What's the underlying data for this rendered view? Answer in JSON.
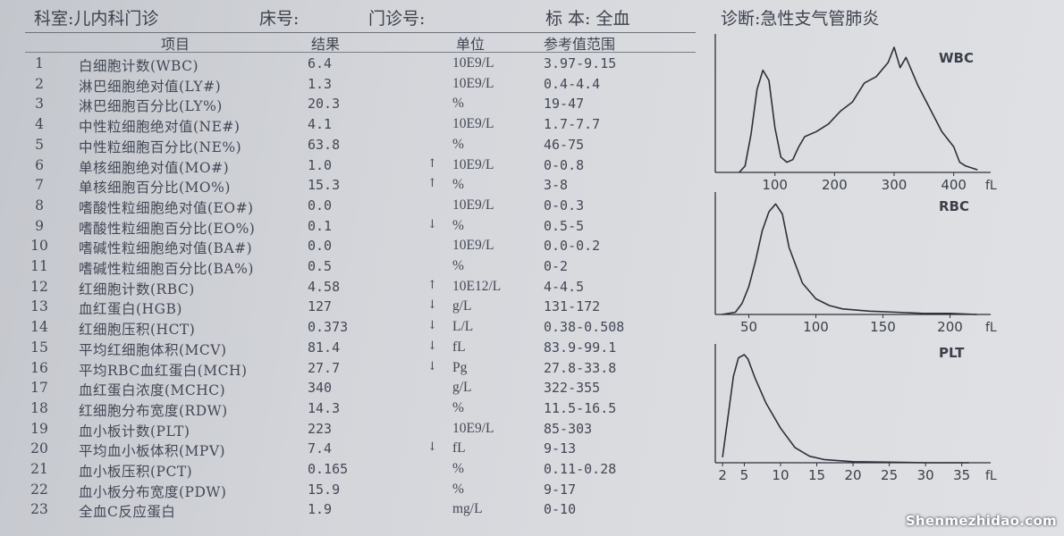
{
  "header": {
    "department": "科室:儿内科门诊",
    "bed_no": "床号:",
    "clinic_no": "门诊号:",
    "specimen": "标 本: 全血",
    "diagnosis": "诊断:急性支气管肺炎"
  },
  "columns": {
    "item": "项目",
    "result": "结果",
    "unit": "单位",
    "reference": "参考值范围"
  },
  "rows": [
    {
      "no": "1",
      "name": "白细胞计数(WBC)",
      "result": "6.4",
      "flag": "",
      "unit": "10E9/L",
      "ref": "3.97-9.15"
    },
    {
      "no": "2",
      "name": "淋巴细胞绝对值(LY#)",
      "result": "1.3",
      "flag": "",
      "unit": "10E9/L",
      "ref": "0.4-4.4"
    },
    {
      "no": "3",
      "name": "淋巴细胞百分比(LY%)",
      "result": "20.3",
      "flag": "",
      "unit": "%",
      "ref": "19-47"
    },
    {
      "no": "4",
      "name": "中性粒细胞绝对值(NE#)",
      "result": "4.1",
      "flag": "",
      "unit": "10E9/L",
      "ref": "1.7-7.7"
    },
    {
      "no": "5",
      "name": "中性粒细胞百分比(NE%)",
      "result": "63.8",
      "flag": "",
      "unit": "%",
      "ref": "46-75"
    },
    {
      "no": "6",
      "name": "单核细胞绝对值(MO#)",
      "result": "1.0",
      "flag": "↑",
      "unit": "10E9/L",
      "ref": "0-0.8"
    },
    {
      "no": "7",
      "name": "单核细胞百分比(MO%)",
      "result": "15.3",
      "flag": "↑",
      "unit": "%",
      "ref": "3-8"
    },
    {
      "no": "8",
      "name": "嗜酸性粒细胞绝对值(EO#)",
      "result": "0.0",
      "flag": "",
      "unit": "10E9/L",
      "ref": "0-0.3"
    },
    {
      "no": "9",
      "name": "嗜酸性粒细胞百分比(EO%)",
      "result": "0.1",
      "flag": "↓",
      "unit": "%",
      "ref": "0.5-5"
    },
    {
      "no": "10",
      "name": "嗜碱性粒细胞绝对值(BA#)",
      "result": "0.0",
      "flag": "",
      "unit": "10E9/L",
      "ref": "0.0-0.2"
    },
    {
      "no": "11",
      "name": "嗜碱性粒细胞百分比(BA%)",
      "result": "0.5",
      "flag": "",
      "unit": "%",
      "ref": "0-2"
    },
    {
      "no": "12",
      "name": "红细胞计数(RBC)",
      "result": "4.58",
      "flag": "↑",
      "unit": "10E12/L",
      "ref": "4-4.5"
    },
    {
      "no": "13",
      "name": "血红蛋白(HGB)",
      "result": "127",
      "flag": "↓",
      "unit": "g/L",
      "ref": "131-172"
    },
    {
      "no": "14",
      "name": "红细胞压积(HCT)",
      "result": "0.373",
      "flag": "↓",
      "unit": "L/L",
      "ref": "0.38-0.508"
    },
    {
      "no": "15",
      "name": "平均红细胞体积(MCV)",
      "result": "81.4",
      "flag": "↓",
      "unit": "fL",
      "ref": "83.9-99.1"
    },
    {
      "no": "16",
      "name": "平均RBC血红蛋白(MCH)",
      "result": "27.7",
      "flag": "↓",
      "unit": "Pg",
      "ref": "27.8-33.8"
    },
    {
      "no": "17",
      "name": "血红蛋白浓度(MCHC)",
      "result": "340",
      "flag": "",
      "unit": "g/L",
      "ref": "322-355"
    },
    {
      "no": "18",
      "name": "红细胞分布宽度(RDW)",
      "result": "14.3",
      "flag": "",
      "unit": "%",
      "ref": "11.5-16.5"
    },
    {
      "no": "19",
      "name": "血小板计数(PLT)",
      "result": "223",
      "flag": "",
      "unit": "10E9/L",
      "ref": "85-303"
    },
    {
      "no": "20",
      "name": "平均血小板体积(MPV)",
      "result": "7.4",
      "flag": "↓",
      "unit": "fL",
      "ref": "9-13"
    },
    {
      "no": "21",
      "name": "血小板压积(PCT)",
      "result": "0.165",
      "flag": "",
      "unit": "%",
      "ref": "0.11-0.28"
    },
    {
      "no": "22",
      "name": "血小板分布宽度(PDW)",
      "result": "15.9",
      "flag": "",
      "unit": "%",
      "ref": "9-17"
    },
    {
      "no": "23",
      "name": "全血C反应蛋白",
      "result": "1.9",
      "flag": "",
      "unit": "mg/L",
      "ref": "0-10"
    }
  ],
  "chart_data": [
    {
      "type": "line",
      "title": "WBC",
      "xlabel": "fL",
      "ticks": [
        "100",
        "200",
        "300",
        "400"
      ],
      "xlim": [
        0,
        450
      ],
      "x": [
        40,
        50,
        60,
        70,
        80,
        90,
        100,
        110,
        120,
        130,
        140,
        150,
        170,
        190,
        210,
        230,
        250,
        270,
        290,
        300,
        310,
        320,
        340,
        360,
        380,
        400,
        410,
        420,
        440
      ],
      "y": [
        0,
        0.05,
        0.3,
        0.65,
        0.8,
        0.72,
        0.35,
        0.12,
        0.08,
        0.1,
        0.2,
        0.28,
        0.32,
        0.38,
        0.48,
        0.55,
        0.7,
        0.75,
        0.86,
        0.98,
        0.82,
        0.9,
        0.68,
        0.5,
        0.32,
        0.2,
        0.08,
        0.05,
        0.02
      ]
    },
    {
      "type": "line",
      "title": "RBC",
      "xlabel": "fL",
      "ticks": [
        "50",
        "100",
        "150",
        "200"
      ],
      "xlim": [
        25,
        225
      ],
      "x": [
        30,
        40,
        45,
        50,
        55,
        60,
        65,
        70,
        75,
        80,
        90,
        100,
        110,
        120,
        140,
        160,
        180,
        200,
        220
      ],
      "y": [
        0,
        0.02,
        0.1,
        0.25,
        0.48,
        0.75,
        0.92,
        0.99,
        0.9,
        0.6,
        0.28,
        0.14,
        0.08,
        0.05,
        0.03,
        0.02,
        0.01,
        0.01,
        0
      ]
    },
    {
      "type": "line",
      "title": "PLT",
      "xlabel": "fL",
      "ticks": [
        "2",
        "5",
        "10",
        "15",
        "20",
        "25",
        "30",
        "35"
      ],
      "xlim": [
        1,
        38
      ],
      "x": [
        2,
        2.8,
        3.5,
        4.2,
        5,
        5.5,
        6.5,
        8,
        10,
        12,
        14,
        16,
        20,
        30,
        36
      ],
      "y": [
        0.05,
        0.45,
        0.8,
        0.97,
        1.0,
        0.96,
        0.78,
        0.55,
        0.32,
        0.14,
        0.06,
        0.03,
        0.01,
        0,
        0
      ]
    }
  ],
  "watermark": "Shenmezhidao.com",
  "colors": {
    "ink": "#3a3f4a",
    "curve": "#2c303a",
    "paper": "#d6d8dc"
  }
}
